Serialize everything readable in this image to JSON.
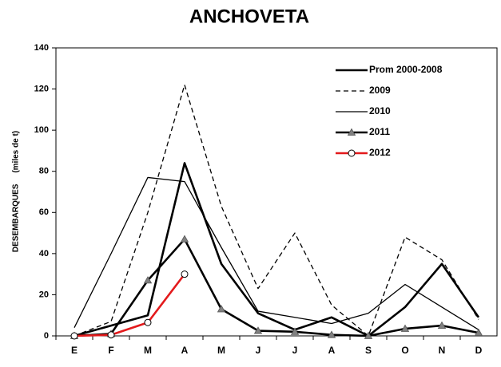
{
  "chart_data": {
    "type": "line",
    "title": "ANCHOVETA",
    "y_label": "DESEMBARQUES     (miles de t)",
    "categories": [
      "E",
      "F",
      "M",
      "A",
      "M",
      "J",
      "J",
      "A",
      "S",
      "O",
      "N",
      "D"
    ],
    "ylim": [
      0,
      140
    ],
    "yticks": [
      0,
      20,
      40,
      60,
      80,
      100,
      120,
      140
    ],
    "legend": "upper right",
    "series": [
      {
        "name": "Prom 2000-2008",
        "color": "#000000",
        "style": "solid",
        "weight": "bold",
        "marker": "none",
        "values": [
          0,
          5,
          10,
          84,
          35,
          11,
          3,
          9,
          0,
          14,
          35,
          9
        ]
      },
      {
        "name": "2009",
        "color": "#000000",
        "style": "dashed",
        "weight": "normal",
        "marker": "none",
        "values": [
          0,
          7,
          60,
          122,
          63,
          23,
          50,
          15,
          0,
          48,
          37,
          8
        ]
      },
      {
        "name": "2010",
        "color": "#000000",
        "style": "solid",
        "weight": "normal",
        "marker": "none",
        "values": [
          4,
          40,
          77,
          75,
          43,
          12,
          9,
          6,
          11,
          25,
          14,
          3
        ]
      },
      {
        "name": "2011",
        "color": "#000000",
        "style": "solid",
        "weight": "bold",
        "marker": "triangle",
        "values": [
          0,
          1,
          27,
          47,
          13,
          2.5,
          2,
          0.5,
          0,
          3.5,
          5,
          1.5
        ]
      },
      {
        "name": "2012",
        "color": "#e31a1c",
        "style": "solid",
        "weight": "bold",
        "marker": "circle",
        "values": [
          0,
          0.5,
          6.5,
          30,
          null,
          null,
          null,
          null,
          null,
          null,
          null,
          null
        ]
      }
    ]
  }
}
